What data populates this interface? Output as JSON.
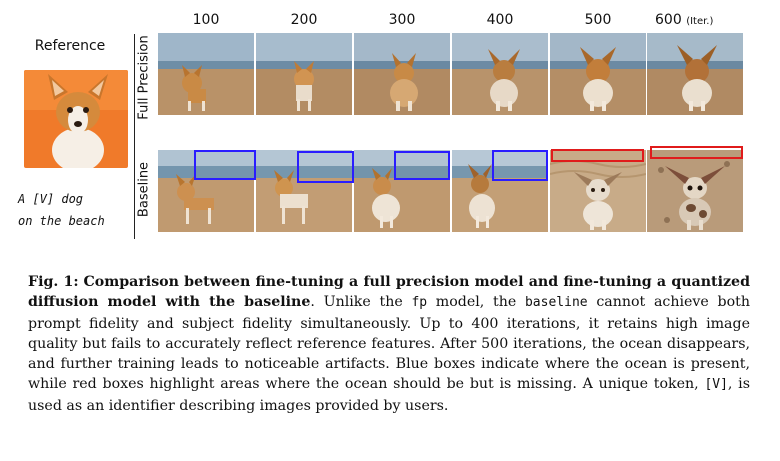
{
  "figure": {
    "reference_label": "Reference",
    "prompt_line1": "A [V] dog",
    "prompt_line2": "on the beach",
    "row_labels": {
      "full_precision": "Full Precision",
      "baseline": "Baseline"
    },
    "iterations": [
      "100",
      "200",
      "300",
      "400",
      "500",
      "600"
    ],
    "iter_unit": "(Iter.)",
    "box_colors": {
      "ocean_present": "#2a1dff",
      "ocean_missing": "#e01b1b"
    }
  },
  "caption": {
    "fig_label": "Fig. 1:",
    "bold_title": "Comparison between fine-tuning a full precision model and fine-tuning a quantized diffusion model with the baseline",
    "t1": ". Unlike the ",
    "code_fp": "fp",
    "t2": " model, the ",
    "code_baseline": "baseline",
    "t3": " cannot achieve both prompt fidelity and subject fidelity simultaneously. Up to 400 iterations, it retains high image quality but fails to accurately reflect reference features. After 500 iterations, the ocean disappears, and further training leads to noticeable artifacts. Blue boxes indicate where the ocean is present, while red boxes highlight areas where the ocean should be but is missing. A unique token, ",
    "code_token": "[V]",
    "t4": ", is used as an identifier describing images provided by users."
  }
}
